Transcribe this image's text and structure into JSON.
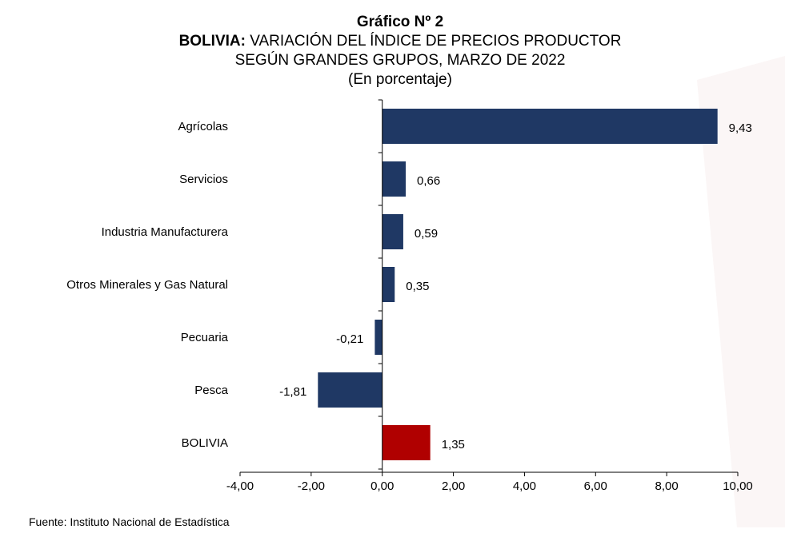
{
  "heading": {
    "number": "Gráfico Nº 2",
    "country": "BOLIVIA:",
    "line1_rest": " VARIACIÓN DEL ÍNDICE DE PRECIOS PRODUCTOR",
    "line2": "SEGÚN GRANDES GRUPOS, MARZO DE 2022",
    "unit": "(En porcentaje)"
  },
  "source": "Fuente: Instituto Nacional de Estadística",
  "colors": {
    "bar": "#1f3864",
    "highlight": "#b00000"
  },
  "chart_data": {
    "type": "bar",
    "orientation": "horizontal",
    "title": "Gráfico Nº 2 BOLIVIA: VARIACIÓN DEL ÍNDICE DE PRECIOS PRODUCTOR SEGÚN GRANDES GRUPOS, MARZO DE 2022",
    "subtitle": "(En porcentaje)",
    "categories": [
      "Agrícolas",
      "Servicios",
      "Industria Manufacturera",
      "Otros Minerales y Gas Natural",
      "Pecuaria",
      "Pesca",
      "BOLIVIA"
    ],
    "values": [
      9.43,
      0.66,
      0.59,
      0.35,
      -0.21,
      -1.81,
      1.35
    ],
    "value_labels": [
      "9,43",
      "0,66",
      "0,59",
      "0,35",
      "-0,21",
      "-1,81",
      "1,35"
    ],
    "highlight_category": "BOLIVIA",
    "xlim": [
      -4,
      10
    ],
    "xticks": [
      -4,
      -2,
      0,
      2,
      4,
      6,
      8,
      10
    ],
    "xtick_labels": [
      "-4,00",
      "-2,00",
      "0,00",
      "2,00",
      "4,00",
      "6,00",
      "8,00",
      "10,00"
    ],
    "xlabel": "",
    "ylabel": "",
    "grid": false,
    "legend": "none"
  }
}
